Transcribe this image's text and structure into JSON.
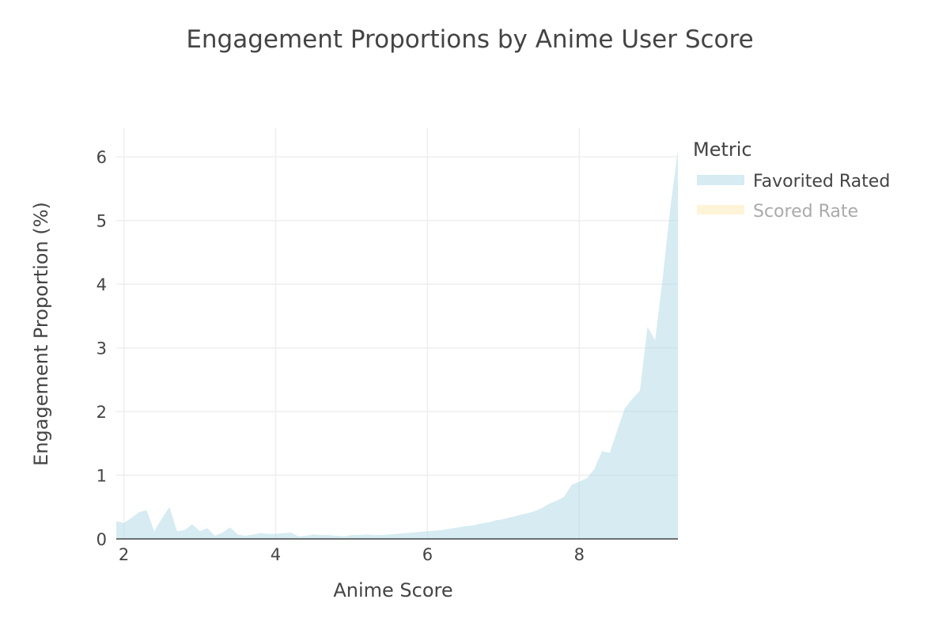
{
  "chart_data": {
    "type": "area",
    "title": "Engagement Proportions by Anime User Score",
    "xlabel": "Anime Score",
    "ylabel": "Engagement Proportion (%)",
    "xlim": [
      1.9,
      9.3
    ],
    "ylim": [
      0,
      6.45
    ],
    "x_ticks": [
      2,
      4,
      6,
      8
    ],
    "y_ticks": [
      0,
      1,
      2,
      3,
      4,
      5,
      6
    ],
    "x_tick_labels": [
      "2",
      "4",
      "6",
      "8"
    ],
    "y_tick_labels": [
      "0",
      "1",
      "2",
      "3",
      "4",
      "5",
      "6"
    ],
    "grid": true,
    "legend": {
      "title": "Metric",
      "placement": "right"
    },
    "series": [
      {
        "name": "Favorited Rated",
        "color": "#add8e6",
        "opacity": 0.5,
        "visible": true,
        "x": [
          1.9,
          2.0,
          2.1,
          2.2,
          2.3,
          2.4,
          2.5,
          2.6,
          2.7,
          2.8,
          2.9,
          3.0,
          3.1,
          3.2,
          3.3,
          3.4,
          3.5,
          3.6,
          3.7,
          3.8,
          3.9,
          4.0,
          4.1,
          4.2,
          4.3,
          4.4,
          4.5,
          4.6,
          4.7,
          4.8,
          4.9,
          5.0,
          5.1,
          5.2,
          5.3,
          5.4,
          5.5,
          5.6,
          5.7,
          5.8,
          5.9,
          6.0,
          6.1,
          6.2,
          6.3,
          6.4,
          6.5,
          6.6,
          6.7,
          6.8,
          6.9,
          7.0,
          7.1,
          7.2,
          7.3,
          7.4,
          7.5,
          7.6,
          7.7,
          7.8,
          7.9,
          8.0,
          8.1,
          8.2,
          8.3,
          8.4,
          8.5,
          8.6,
          8.7,
          8.8,
          8.9,
          9.0,
          9.1,
          9.2,
          9.3
        ],
        "values": [
          0.28,
          0.25,
          0.33,
          0.42,
          0.45,
          0.12,
          0.32,
          0.5,
          0.12,
          0.14,
          0.23,
          0.12,
          0.17,
          0.05,
          0.1,
          0.18,
          0.07,
          0.05,
          0.07,
          0.09,
          0.08,
          0.08,
          0.09,
          0.1,
          0.04,
          0.05,
          0.07,
          0.06,
          0.06,
          0.05,
          0.04,
          0.06,
          0.06,
          0.07,
          0.06,
          0.06,
          0.07,
          0.08,
          0.09,
          0.1,
          0.11,
          0.12,
          0.13,
          0.14,
          0.16,
          0.18,
          0.2,
          0.21,
          0.24,
          0.26,
          0.29,
          0.31,
          0.34,
          0.37,
          0.4,
          0.43,
          0.48,
          0.55,
          0.6,
          0.66,
          0.85,
          0.9,
          0.95,
          1.1,
          1.38,
          1.35,
          1.7,
          2.05,
          2.2,
          2.33,
          3.33,
          3.12,
          4.1,
          5.2,
          6.1
        ]
      },
      {
        "name": "Scored Rate",
        "color": "#ffe4a8",
        "opacity": 0.5,
        "visible": false,
        "x": [],
        "values": []
      }
    ]
  }
}
